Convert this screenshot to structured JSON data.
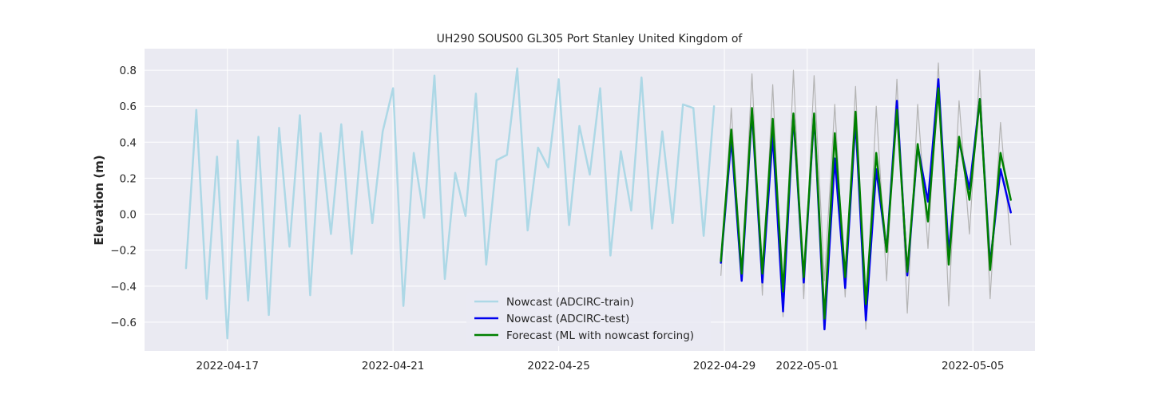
{
  "chart_data": {
    "type": "line",
    "title": "UH290 SOUS00 GL305 Port Stanley United Kingdom of",
    "xlabel": "",
    "ylabel": "Elevation (m)",
    "x_axis_type": "date",
    "xlim": [
      "2022-04-15T00:00",
      "2022-05-06T12:00"
    ],
    "ylim": [
      -0.76,
      0.92
    ],
    "x_ticks": [
      {
        "date": "2022-04-17T00:00",
        "label": "2022-04-17"
      },
      {
        "date": "2022-04-21T00:00",
        "label": "2022-04-21"
      },
      {
        "date": "2022-04-25T00:00",
        "label": "2022-04-25"
      },
      {
        "date": "2022-04-29T00:00",
        "label": "2022-04-29"
      },
      {
        "date": "2022-05-01T00:00",
        "label": "2022-05-01"
      },
      {
        "date": "2022-05-05T00:00",
        "label": "2022-05-05"
      }
    ],
    "y_ticks": [
      -0.6,
      -0.4,
      -0.2,
      0.0,
      0.2,
      0.4,
      0.6,
      0.8
    ],
    "y_tick_labels": [
      "−0.6",
      "−0.4",
      "−0.2",
      "0.0",
      "0.2",
      "0.4",
      "0.6",
      "0.8"
    ],
    "grid": true,
    "legend_position": "lower-center",
    "series": [
      {
        "name": "",
        "color": "#b3b3b3",
        "in_legend": false,
        "x": [
          "2022-04-28T22:00",
          "2022-04-29T04:00",
          "2022-04-29T10:00",
          "2022-04-29T16:00",
          "2022-04-29T22:00",
          "2022-04-30T04:00",
          "2022-04-30T10:00",
          "2022-04-30T16:00",
          "2022-04-30T22:00",
          "2022-05-01T04:00",
          "2022-05-01T10:00",
          "2022-05-01T16:00",
          "2022-05-01T22:00",
          "2022-05-02T04:00",
          "2022-05-02T10:00",
          "2022-05-02T16:00",
          "2022-05-02T22:00",
          "2022-05-03T04:00",
          "2022-05-03T10:00",
          "2022-05-03T16:00",
          "2022-05-03T22:00",
          "2022-05-04T04:00",
          "2022-05-04T10:00",
          "2022-05-04T16:00",
          "2022-05-04T22:00",
          "2022-05-05T04:00",
          "2022-05-05T10:00",
          "2022-05-05T16:00",
          "2022-05-05T22:00"
        ],
        "values": [
          -0.34,
          0.59,
          -0.36,
          0.78,
          -0.45,
          0.72,
          -0.57,
          0.8,
          -0.47,
          0.77,
          -0.37,
          0.61,
          -0.46,
          0.71,
          -0.64,
          0.6,
          -0.37,
          0.75,
          -0.55,
          0.61,
          -0.19,
          0.84,
          -0.51,
          0.63,
          -0.11,
          0.8,
          -0.47,
          0.51,
          -0.17
        ]
      },
      {
        "name": "Nowcast (ADCIRC-train)",
        "color": "#add8e6",
        "in_legend": true,
        "x": [
          "2022-04-16T00:00",
          "2022-04-16T06:00",
          "2022-04-16T12:00",
          "2022-04-16T18:00",
          "2022-04-17T00:00",
          "2022-04-17T06:00",
          "2022-04-17T12:00",
          "2022-04-17T18:00",
          "2022-04-18T00:00",
          "2022-04-18T06:00",
          "2022-04-18T12:00",
          "2022-04-18T18:00",
          "2022-04-19T00:00",
          "2022-04-19T06:00",
          "2022-04-19T12:00",
          "2022-04-19T18:00",
          "2022-04-20T00:00",
          "2022-04-20T06:00",
          "2022-04-20T12:00",
          "2022-04-20T18:00",
          "2022-04-21T00:00",
          "2022-04-21T06:00",
          "2022-04-21T12:00",
          "2022-04-21T18:00",
          "2022-04-22T00:00",
          "2022-04-22T06:00",
          "2022-04-22T12:00",
          "2022-04-22T18:00",
          "2022-04-23T00:00",
          "2022-04-23T06:00",
          "2022-04-23T12:00",
          "2022-04-23T18:00",
          "2022-04-24T00:00",
          "2022-04-24T06:00",
          "2022-04-24T12:00",
          "2022-04-24T18:00",
          "2022-04-25T00:00",
          "2022-04-25T06:00",
          "2022-04-25T12:00",
          "2022-04-25T18:00",
          "2022-04-26T00:00",
          "2022-04-26T06:00",
          "2022-04-26T12:00",
          "2022-04-26T18:00",
          "2022-04-27T00:00",
          "2022-04-27T06:00",
          "2022-04-27T12:00",
          "2022-04-27T18:00",
          "2022-04-28T00:00",
          "2022-04-28T06:00",
          "2022-04-28T12:00",
          "2022-04-28T18:00"
        ],
        "values": [
          -0.3,
          0.58,
          -0.47,
          0.32,
          -0.69,
          0.41,
          -0.48,
          0.43,
          -0.56,
          0.48,
          -0.18,
          0.55,
          -0.45,
          0.45,
          -0.11,
          0.5,
          -0.22,
          0.46,
          -0.05,
          0.46,
          0.7,
          -0.51,
          0.34,
          -0.02,
          0.77,
          -0.36,
          0.23,
          -0.01,
          0.67,
          -0.28,
          0.3,
          0.33,
          0.81,
          -0.09,
          0.37,
          0.26,
          0.75,
          -0.06,
          0.49,
          0.22,
          0.7,
          -0.23,
          0.35,
          0.02,
          0.76,
          -0.08,
          0.46,
          -0.05,
          0.61,
          0.59,
          -0.12,
          0.6
        ]
      },
      {
        "name": "Nowcast (ADCIRC-test)",
        "color": "#0000ee",
        "in_legend": true,
        "x": [
          "2022-04-28T22:00",
          "2022-04-29T04:00",
          "2022-04-29T10:00",
          "2022-04-29T16:00",
          "2022-04-29T22:00",
          "2022-04-30T04:00",
          "2022-04-30T10:00",
          "2022-04-30T16:00",
          "2022-04-30T22:00",
          "2022-05-01T04:00",
          "2022-05-01T10:00",
          "2022-05-01T16:00",
          "2022-05-01T22:00",
          "2022-05-02T04:00",
          "2022-05-02T10:00",
          "2022-05-02T16:00",
          "2022-05-02T22:00",
          "2022-05-03T04:00",
          "2022-05-03T10:00",
          "2022-05-03T16:00",
          "2022-05-03T22:00",
          "2022-05-04T04:00",
          "2022-05-04T10:00",
          "2022-05-04T16:00",
          "2022-05-04T22:00",
          "2022-05-05T04:00",
          "2022-05-05T10:00",
          "2022-05-05T16:00",
          "2022-05-05T22:00"
        ],
        "values": [
          -0.27,
          0.42,
          -0.37,
          0.57,
          -0.38,
          0.44,
          -0.54,
          0.55,
          -0.38,
          0.55,
          -0.64,
          0.31,
          -0.41,
          0.52,
          -0.59,
          0.25,
          -0.2,
          0.63,
          -0.34,
          0.38,
          0.07,
          0.75,
          -0.22,
          0.41,
          0.14,
          0.64,
          -0.28,
          0.25,
          0.01
        ]
      },
      {
        "name": "Forecast (ML with nowcast forcing)",
        "color": "#008000",
        "in_legend": true,
        "x": [
          "2022-04-28T22:00",
          "2022-04-29T04:00",
          "2022-04-29T10:00",
          "2022-04-29T16:00",
          "2022-04-29T22:00",
          "2022-04-30T04:00",
          "2022-04-30T10:00",
          "2022-04-30T16:00",
          "2022-04-30T22:00",
          "2022-05-01T04:00",
          "2022-05-01T10:00",
          "2022-05-01T16:00",
          "2022-05-01T22:00",
          "2022-05-02T04:00",
          "2022-05-02T10:00",
          "2022-05-02T16:00",
          "2022-05-02T22:00",
          "2022-05-03T04:00",
          "2022-05-03T10:00",
          "2022-05-03T16:00",
          "2022-05-03T22:00",
          "2022-05-04T04:00",
          "2022-05-04T10:00",
          "2022-05-04T16:00",
          "2022-05-04T22:00",
          "2022-05-05T04:00",
          "2022-05-05T10:00",
          "2022-05-05T16:00",
          "2022-05-05T22:00"
        ],
        "values": [
          -0.26,
          0.47,
          -0.33,
          0.59,
          -0.33,
          0.53,
          -0.43,
          0.56,
          -0.35,
          0.56,
          -0.58,
          0.45,
          -0.35,
          0.57,
          -0.5,
          0.34,
          -0.21,
          0.58,
          -0.32,
          0.39,
          -0.04,
          0.7,
          -0.28,
          0.43,
          0.08,
          0.64,
          -0.31,
          0.34,
          0.08
        ]
      }
    ]
  }
}
